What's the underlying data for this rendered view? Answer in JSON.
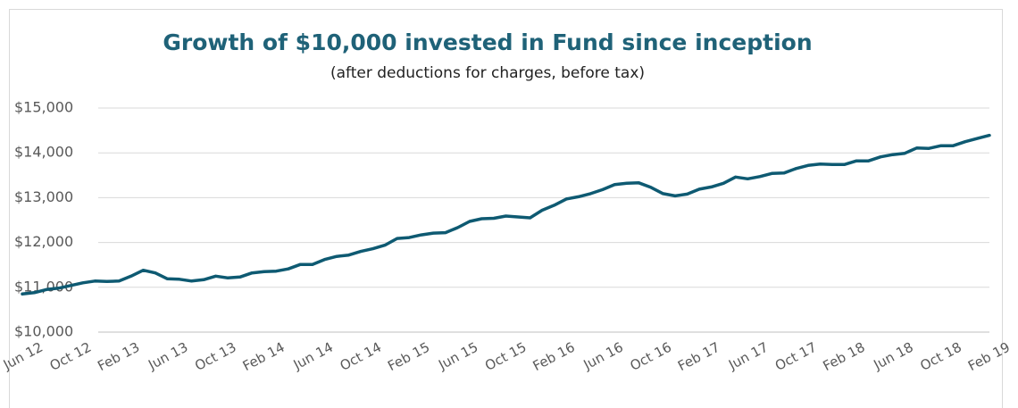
{
  "chart_data": {
    "type": "line",
    "title": "Growth of $10,000 invested in Fund since inception",
    "subtitle": "(after deductions for charges, before tax)",
    "categories": [
      "Jun 12",
      null,
      null,
      null,
      "Oct 12",
      null,
      null,
      null,
      "Feb 13",
      null,
      null,
      null,
      "Jun 13",
      null,
      null,
      null,
      "Oct 13",
      null,
      null,
      null,
      "Feb 14",
      null,
      null,
      null,
      "Jun 14",
      null,
      null,
      null,
      "Oct 14",
      null,
      null,
      null,
      "Feb 15",
      null,
      null,
      null,
      "Jun 15",
      null,
      null,
      null,
      "Oct 15",
      null,
      null,
      null,
      "Feb 16",
      null,
      null,
      null,
      "Jun 16",
      null,
      null,
      null,
      "Oct 16",
      null,
      null,
      null,
      "Feb 17",
      null,
      null,
      null,
      "Jun 17",
      null,
      null,
      null,
      "Oct 17",
      null,
      null,
      null,
      "Feb 18",
      null,
      null,
      null,
      "Jun 18",
      null,
      null,
      null,
      "Oct 18",
      null,
      null,
      null,
      "Feb 19"
    ],
    "values": [
      10850,
      10880,
      10950,
      10980,
      11040,
      11100,
      11140,
      11130,
      11140,
      11250,
      11380,
      11320,
      11190,
      11180,
      11140,
      11170,
      11250,
      11210,
      11230,
      11320,
      11350,
      11360,
      11410,
      11510,
      11510,
      11620,
      11690,
      11720,
      11800,
      11860,
      11940,
      12090,
      12110,
      12170,
      12210,
      12220,
      12330,
      12470,
      12530,
      12540,
      12590,
      12570,
      12550,
      12720,
      12830,
      12970,
      13020,
      13090,
      13180,
      13290,
      13320,
      13330,
      13230,
      13090,
      13040,
      13080,
      13190,
      13240,
      13320,
      13460,
      13420,
      13470,
      13540,
      13550,
      13650,
      13720,
      13750,
      13740,
      13740,
      13820,
      13820,
      13910,
      13960,
      13990,
      14110,
      14100,
      14160,
      14160,
      14250,
      14320,
      14390
    ],
    "color": "#0e5a72",
    "ylim": [
      10000,
      15000
    ],
    "yticks": [
      {
        "value": 10000,
        "label": "$10,000"
      },
      {
        "value": 11000,
        "label": "$11,000"
      },
      {
        "value": 12000,
        "label": "$12,000"
      },
      {
        "value": 13000,
        "label": "$13,000"
      },
      {
        "value": 14000,
        "label": "$14,000"
      },
      {
        "value": 15000,
        "label": "$15,000"
      }
    ],
    "grid": true
  }
}
